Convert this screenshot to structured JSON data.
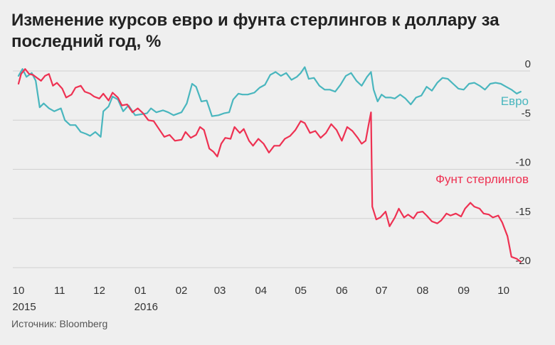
{
  "title": "Изменение курсов евро и фунта стерлингов к доллару за последний год, %",
  "source": "Источник: Bloomberg",
  "chart_data": {
    "type": "line",
    "grid": true,
    "ylim": [
      -20,
      0
    ],
    "yticks": [
      0,
      -5,
      -10,
      -15,
      -20
    ],
    "ytick_labels": [
      "0",
      "-5",
      "-10",
      "-15",
      "-20"
    ],
    "xlim": [
      "2015-10-01",
      "2016-10-20"
    ],
    "xticks": [
      {
        "date": "2015-10-01",
        "label": "10",
        "sublabel": "2015"
      },
      {
        "date": "2015-11-01",
        "label": "11",
        "sublabel": ""
      },
      {
        "date": "2015-12-01",
        "label": "12",
        "sublabel": ""
      },
      {
        "date": "2016-01-01",
        "label": "01",
        "sublabel": "2016"
      },
      {
        "date": "2016-02-01",
        "label": "02",
        "sublabel": ""
      },
      {
        "date": "2016-03-01",
        "label": "03",
        "sublabel": ""
      },
      {
        "date": "2016-04-01",
        "label": "04",
        "sublabel": ""
      },
      {
        "date": "2016-05-01",
        "label": "05",
        "sublabel": ""
      },
      {
        "date": "2016-06-01",
        "label": "06",
        "sublabel": ""
      },
      {
        "date": "2016-07-01",
        "label": "07",
        "sublabel": ""
      },
      {
        "date": "2016-08-01",
        "label": "08",
        "sublabel": ""
      },
      {
        "date": "2016-09-01",
        "label": "09",
        "sublabel": ""
      },
      {
        "date": "2016-10-01",
        "label": "10",
        "sublabel": ""
      }
    ],
    "series": [
      {
        "name": "Евро",
        "color": "#49b6be",
        "points": [
          [
            "2015-10-01",
            -0.5
          ],
          [
            "2015-10-04",
            0.2
          ],
          [
            "2015-10-07",
            -0.6
          ],
          [
            "2015-10-11",
            -0.2
          ],
          [
            "2015-10-14",
            -1.0
          ],
          [
            "2015-10-17",
            -3.7
          ],
          [
            "2015-10-20",
            -3.3
          ],
          [
            "2015-10-24",
            -3.8
          ],
          [
            "2015-10-28",
            -4.1
          ],
          [
            "2015-11-02",
            -3.8
          ],
          [
            "2015-11-05",
            -5.0
          ],
          [
            "2015-11-09",
            -5.5
          ],
          [
            "2015-11-13",
            -5.5
          ],
          [
            "2015-11-17",
            -6.2
          ],
          [
            "2015-11-21",
            -6.4
          ],
          [
            "2015-11-24",
            -6.6
          ],
          [
            "2015-11-28",
            -6.2
          ],
          [
            "2015-12-02",
            -6.7
          ],
          [
            "2015-12-04",
            -4.1
          ],
          [
            "2015-12-08",
            -3.6
          ],
          [
            "2015-12-11",
            -2.6
          ],
          [
            "2015-12-15",
            -2.9
          ],
          [
            "2015-12-19",
            -4.1
          ],
          [
            "2015-12-23",
            -3.5
          ],
          [
            "2015-12-28",
            -4.5
          ],
          [
            "2016-01-02",
            -4.4
          ],
          [
            "2016-01-06",
            -4.3
          ],
          [
            "2016-01-09",
            -3.8
          ],
          [
            "2016-01-13",
            -4.2
          ],
          [
            "2016-01-18",
            -4.0
          ],
          [
            "2016-01-22",
            -4.2
          ],
          [
            "2016-01-26",
            -4.5
          ],
          [
            "2016-02-01",
            -4.2
          ],
          [
            "2016-02-05",
            -3.3
          ],
          [
            "2016-02-09",
            -1.3
          ],
          [
            "2016-02-12",
            -1.6
          ],
          [
            "2016-02-16",
            -3.1
          ],
          [
            "2016-02-20",
            -3.0
          ],
          [
            "2016-02-24",
            -4.6
          ],
          [
            "2016-02-29",
            -4.5
          ],
          [
            "2016-03-04",
            -4.3
          ],
          [
            "2016-03-08",
            -4.2
          ],
          [
            "2016-03-11",
            -2.9
          ],
          [
            "2016-03-15",
            -2.3
          ],
          [
            "2016-03-18",
            -2.4
          ],
          [
            "2016-03-22",
            -2.4
          ],
          [
            "2016-03-27",
            -2.2
          ],
          [
            "2016-03-31",
            -1.7
          ],
          [
            "2016-04-04",
            -1.4
          ],
          [
            "2016-04-08",
            -0.4
          ],
          [
            "2016-04-12",
            -0.1
          ],
          [
            "2016-04-16",
            -0.5
          ],
          [
            "2016-04-20",
            -0.2
          ],
          [
            "2016-04-24",
            -0.9
          ],
          [
            "2016-04-28",
            -0.6
          ],
          [
            "2016-05-01",
            -0.2
          ],
          [
            "2016-05-04",
            0.4
          ],
          [
            "2016-05-07",
            -0.8
          ],
          [
            "2016-05-11",
            -0.7
          ],
          [
            "2016-05-15",
            -1.5
          ],
          [
            "2016-05-19",
            -1.9
          ],
          [
            "2016-05-23",
            -1.9
          ],
          [
            "2016-05-27",
            -2.1
          ],
          [
            "2016-05-31",
            -1.4
          ],
          [
            "2016-06-04",
            -0.5
          ],
          [
            "2016-06-08",
            -0.2
          ],
          [
            "2016-06-12",
            -1.0
          ],
          [
            "2016-06-16",
            -1.5
          ],
          [
            "2016-06-20",
            -0.6
          ],
          [
            "2016-06-23",
            -0.1
          ],
          [
            "2016-06-25",
            -1.9
          ],
          [
            "2016-06-28",
            -3.1
          ],
          [
            "2016-07-01",
            -2.4
          ],
          [
            "2016-07-04",
            -2.7
          ],
          [
            "2016-07-08",
            -2.7
          ],
          [
            "2016-07-11",
            -2.8
          ],
          [
            "2016-07-15",
            -2.4
          ],
          [
            "2016-07-19",
            -2.8
          ],
          [
            "2016-07-23",
            -3.4
          ],
          [
            "2016-07-27",
            -2.7
          ],
          [
            "2016-07-31",
            -2.5
          ],
          [
            "2016-08-04",
            -1.6
          ],
          [
            "2016-08-08",
            -2.0
          ],
          [
            "2016-08-12",
            -1.2
          ],
          [
            "2016-08-16",
            -0.7
          ],
          [
            "2016-08-20",
            -0.8
          ],
          [
            "2016-08-24",
            -1.3
          ],
          [
            "2016-08-28",
            -1.8
          ],
          [
            "2016-09-01",
            -1.9
          ],
          [
            "2016-09-05",
            -1.3
          ],
          [
            "2016-09-09",
            -1.2
          ],
          [
            "2016-09-13",
            -1.5
          ],
          [
            "2016-09-17",
            -1.9
          ],
          [
            "2016-09-21",
            -1.3
          ],
          [
            "2016-09-25",
            -1.2
          ],
          [
            "2016-09-29",
            -1.3
          ],
          [
            "2016-10-03",
            -1.6
          ],
          [
            "2016-10-07",
            -1.9
          ],
          [
            "2016-10-11",
            -2.3
          ],
          [
            "2016-10-14",
            -2.1
          ]
        ]
      },
      {
        "name": "Фунт стерлингов",
        "color": "#ee3152",
        "points": [
          [
            "2015-10-01",
            -1.3
          ],
          [
            "2015-10-03",
            -0.3
          ],
          [
            "2015-10-06",
            0.2
          ],
          [
            "2015-10-09",
            -0.3
          ],
          [
            "2015-10-12",
            -0.4
          ],
          [
            "2015-10-15",
            -0.7
          ],
          [
            "2015-10-18",
            -1.0
          ],
          [
            "2015-10-21",
            -0.5
          ],
          [
            "2015-10-24",
            -0.3
          ],
          [
            "2015-10-27",
            -1.5
          ],
          [
            "2015-10-30",
            -1.2
          ],
          [
            "2015-11-03",
            -1.8
          ],
          [
            "2015-11-06",
            -2.7
          ],
          [
            "2015-11-10",
            -2.4
          ],
          [
            "2015-11-13",
            -1.7
          ],
          [
            "2015-11-17",
            -1.5
          ],
          [
            "2015-11-20",
            -2.1
          ],
          [
            "2015-11-24",
            -2.3
          ],
          [
            "2015-11-27",
            -2.6
          ],
          [
            "2015-12-01",
            -2.8
          ],
          [
            "2015-12-04",
            -2.3
          ],
          [
            "2015-12-08",
            -3.0
          ],
          [
            "2015-12-11",
            -2.2
          ],
          [
            "2015-12-15",
            -2.7
          ],
          [
            "2015-12-18",
            -3.5
          ],
          [
            "2015-12-22",
            -3.4
          ],
          [
            "2015-12-26",
            -4.2
          ],
          [
            "2015-12-30",
            -3.8
          ],
          [
            "2016-01-03",
            -4.3
          ],
          [
            "2016-01-07",
            -5.0
          ],
          [
            "2016-01-11",
            -5.1
          ],
          [
            "2016-01-15",
            -5.9
          ],
          [
            "2016-01-19",
            -6.7
          ],
          [
            "2016-01-23",
            -6.5
          ],
          [
            "2016-01-27",
            -7.1
          ],
          [
            "2016-02-01",
            -7.0
          ],
          [
            "2016-02-04",
            -6.2
          ],
          [
            "2016-02-08",
            -6.8
          ],
          [
            "2016-02-12",
            -6.5
          ],
          [
            "2016-02-15",
            -5.7
          ],
          [
            "2016-02-18",
            -6.0
          ],
          [
            "2016-02-22",
            -7.9
          ],
          [
            "2016-02-25",
            -8.2
          ],
          [
            "2016-02-28",
            -8.7
          ],
          [
            "2016-03-02",
            -7.4
          ],
          [
            "2016-03-05",
            -6.8
          ],
          [
            "2016-03-09",
            -6.9
          ],
          [
            "2016-03-12",
            -5.7
          ],
          [
            "2016-03-16",
            -6.3
          ],
          [
            "2016-03-19",
            -5.9
          ],
          [
            "2016-03-23",
            -7.1
          ],
          [
            "2016-03-26",
            -7.6
          ],
          [
            "2016-03-30",
            -6.9
          ],
          [
            "2016-04-03",
            -7.4
          ],
          [
            "2016-04-07",
            -8.3
          ],
          [
            "2016-04-11",
            -7.6
          ],
          [
            "2016-04-15",
            -7.6
          ],
          [
            "2016-04-19",
            -6.9
          ],
          [
            "2016-04-23",
            -6.6
          ],
          [
            "2016-04-27",
            -6.0
          ],
          [
            "2016-05-01",
            -5.1
          ],
          [
            "2016-05-04",
            -5.3
          ],
          [
            "2016-05-08",
            -6.3
          ],
          [
            "2016-05-12",
            -6.1
          ],
          [
            "2016-05-16",
            -6.8
          ],
          [
            "2016-05-20",
            -6.3
          ],
          [
            "2016-05-24",
            -5.4
          ],
          [
            "2016-05-28",
            -6.0
          ],
          [
            "2016-06-01",
            -7.1
          ],
          [
            "2016-06-05",
            -5.7
          ],
          [
            "2016-06-09",
            -6.1
          ],
          [
            "2016-06-13",
            -6.8
          ],
          [
            "2016-06-16",
            -7.4
          ],
          [
            "2016-06-19",
            -7.1
          ],
          [
            "2016-06-21",
            -5.6
          ],
          [
            "2016-06-23",
            -4.2
          ],
          [
            "2016-06-24",
            -13.8
          ],
          [
            "2016-06-27",
            -15.1
          ],
          [
            "2016-06-30",
            -14.9
          ],
          [
            "2016-07-04",
            -14.3
          ],
          [
            "2016-07-07",
            -15.8
          ],
          [
            "2016-07-11",
            -14.9
          ],
          [
            "2016-07-14",
            -14.0
          ],
          [
            "2016-07-18",
            -14.9
          ],
          [
            "2016-07-21",
            -14.6
          ],
          [
            "2016-07-25",
            -15.0
          ],
          [
            "2016-07-28",
            -14.4
          ],
          [
            "2016-08-01",
            -14.3
          ],
          [
            "2016-08-04",
            -14.7
          ],
          [
            "2016-08-08",
            -15.3
          ],
          [
            "2016-08-12",
            -15.5
          ],
          [
            "2016-08-15",
            -15.2
          ],
          [
            "2016-08-19",
            -14.5
          ],
          [
            "2016-08-22",
            -14.7
          ],
          [
            "2016-08-26",
            -14.5
          ],
          [
            "2016-08-30",
            -14.8
          ],
          [
            "2016-09-02",
            -14.0
          ],
          [
            "2016-09-06",
            -13.4
          ],
          [
            "2016-09-09",
            -13.8
          ],
          [
            "2016-09-13",
            -14.0
          ],
          [
            "2016-09-16",
            -14.5
          ],
          [
            "2016-09-20",
            -14.6
          ],
          [
            "2016-09-23",
            -14.9
          ],
          [
            "2016-09-27",
            -14.7
          ],
          [
            "2016-09-30",
            -15.4
          ],
          [
            "2016-10-04",
            -16.8
          ],
          [
            "2016-10-07",
            -18.9
          ],
          [
            "2016-10-11",
            -19.1
          ],
          [
            "2016-10-14",
            -19.4
          ]
        ]
      }
    ]
  }
}
